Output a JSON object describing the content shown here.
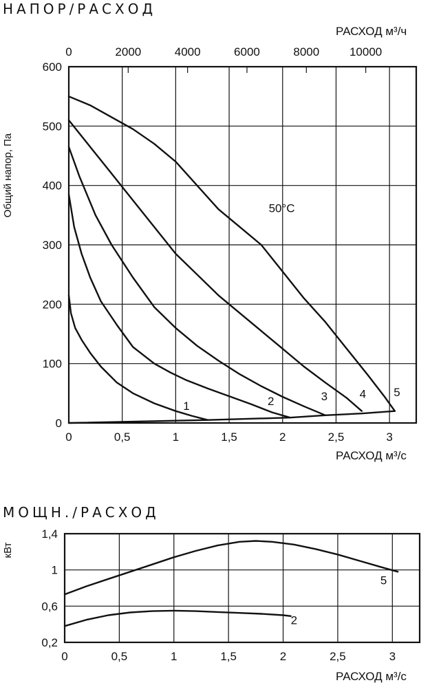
{
  "chart_data": [
    {
      "type": "line",
      "title": "НАПОР/РАСХОД",
      "xlabel": "РАСХОД м³/с",
      "x2label": "РАСХОД м³/ч",
      "ylabel": "Общий напор, Па",
      "xlim": [
        0,
        3.25
      ],
      "ylim": [
        0,
        600
      ],
      "x2lim": [
        0,
        11700
      ],
      "grid": true,
      "xticks": [
        "0",
        "0,5",
        "1",
        "1,5",
        "2",
        "2,5",
        "3"
      ],
      "yticks": [
        "0",
        "100",
        "200",
        "300",
        "400",
        "500",
        "600"
      ],
      "x2ticks": [
        "0",
        "2000",
        "4000",
        "6000",
        "8000",
        "10000"
      ],
      "x2tick_values": [
        0,
        2000,
        4000,
        6000,
        8000,
        10000
      ],
      "annotation": "50°C",
      "series": [
        {
          "name": "1",
          "x": [
            0,
            0.02,
            0.06,
            0.12,
            0.2,
            0.3,
            0.45,
            0.6,
            0.8,
            1.0,
            1.15,
            1.3
          ],
          "y": [
            215,
            185,
            160,
            140,
            118,
            95,
            68,
            50,
            33,
            20,
            12,
            5
          ]
        },
        {
          "name": "2",
          "x": [
            0,
            0.05,
            0.12,
            0.2,
            0.3,
            0.45,
            0.6,
            0.8,
            0.95,
            1.1,
            1.3,
            1.5,
            1.7,
            1.9,
            2.07
          ],
          "y": [
            385,
            330,
            285,
            245,
            205,
            165,
            128,
            100,
            85,
            72,
            58,
            45,
            32,
            18,
            9
          ]
        },
        {
          "name": "3",
          "x": [
            0,
            0.1,
            0.25,
            0.4,
            0.6,
            0.8,
            1.0,
            1.2,
            1.4,
            1.6,
            1.8,
            2.0,
            2.2,
            2.4
          ],
          "y": [
            465,
            415,
            350,
            300,
            245,
            195,
            160,
            130,
            105,
            82,
            62,
            44,
            28,
            13
          ]
        },
        {
          "name": "4",
          "x": [
            0,
            0.2,
            0.4,
            0.6,
            0.8,
            1.0,
            1.2,
            1.4,
            1.6,
            1.8,
            2.0,
            2.2,
            2.4,
            2.6,
            2.74
          ],
          "y": [
            510,
            465,
            420,
            375,
            330,
            285,
            250,
            215,
            185,
            155,
            125,
            95,
            68,
            42,
            20
          ]
        },
        {
          "name": "5",
          "x": [
            0,
            0.2,
            0.4,
            0.6,
            0.8,
            1.0,
            1.2,
            1.4,
            1.6,
            1.8,
            2.0,
            2.2,
            2.4,
            2.6,
            2.8,
            2.95,
            3.05
          ],
          "y": [
            550,
            535,
            515,
            495,
            470,
            440,
            400,
            360,
            330,
            300,
            255,
            210,
            170,
            125,
            80,
            45,
            20
          ]
        },
        {
          "name": "",
          "x": [
            0,
            1.3,
            2.07,
            2.4,
            2.74,
            3.05
          ],
          "y": [
            0,
            5,
            9,
            13,
            16,
            20
          ]
        }
      ],
      "series_labels": [
        {
          "text": "1",
          "x": 1.1,
          "y": 22
        },
        {
          "text": "2",
          "x": 1.89,
          "y": 30
        },
        {
          "text": "3",
          "x": 2.39,
          "y": 38
        },
        {
          "text": "4",
          "x": 2.75,
          "y": 42
        },
        {
          "text": "5",
          "x": 3.07,
          "y": 45
        }
      ],
      "annotation_pos": {
        "x": 1.87,
        "y": 355
      }
    },
    {
      "type": "line",
      "title": "МОЩН./РАСХОД",
      "xlabel": "РАСХОД м³/с",
      "ylabel": "кВт",
      "xlim": [
        0,
        3.25
      ],
      "ylim": [
        0.2,
        1.4
      ],
      "grid": true,
      "xticks": [
        "0",
        "0,5",
        "1",
        "1,5",
        "2",
        "2,5",
        "3"
      ],
      "yticks": [
        "0,2",
        "0,6",
        "1",
        "1,4"
      ],
      "ytick_values": [
        0.2,
        0.6,
        1.0,
        1.4
      ],
      "series": [
        {
          "name": "5",
          "x": [
            0,
            0.2,
            0.4,
            0.6,
            0.8,
            1.0,
            1.2,
            1.4,
            1.6,
            1.75,
            1.9,
            2.1,
            2.3,
            2.5,
            2.7,
            2.9,
            3.05
          ],
          "y": [
            0.73,
            0.82,
            0.9,
            0.98,
            1.06,
            1.14,
            1.21,
            1.27,
            1.31,
            1.32,
            1.31,
            1.28,
            1.23,
            1.17,
            1.1,
            1.03,
            0.98
          ]
        },
        {
          "name": "2",
          "x": [
            0,
            0.2,
            0.4,
            0.6,
            0.8,
            1.0,
            1.2,
            1.4,
            1.6,
            1.8,
            2.0,
            2.07
          ],
          "y": [
            0.38,
            0.45,
            0.5,
            0.53,
            0.545,
            0.55,
            0.545,
            0.535,
            0.525,
            0.515,
            0.5,
            0.49
          ]
        }
      ],
      "series_labels": [
        {
          "text": "5",
          "x": 2.92,
          "y": 0.84
        },
        {
          "text": "2",
          "x": 2.1,
          "y": 0.4
        }
      ]
    }
  ]
}
